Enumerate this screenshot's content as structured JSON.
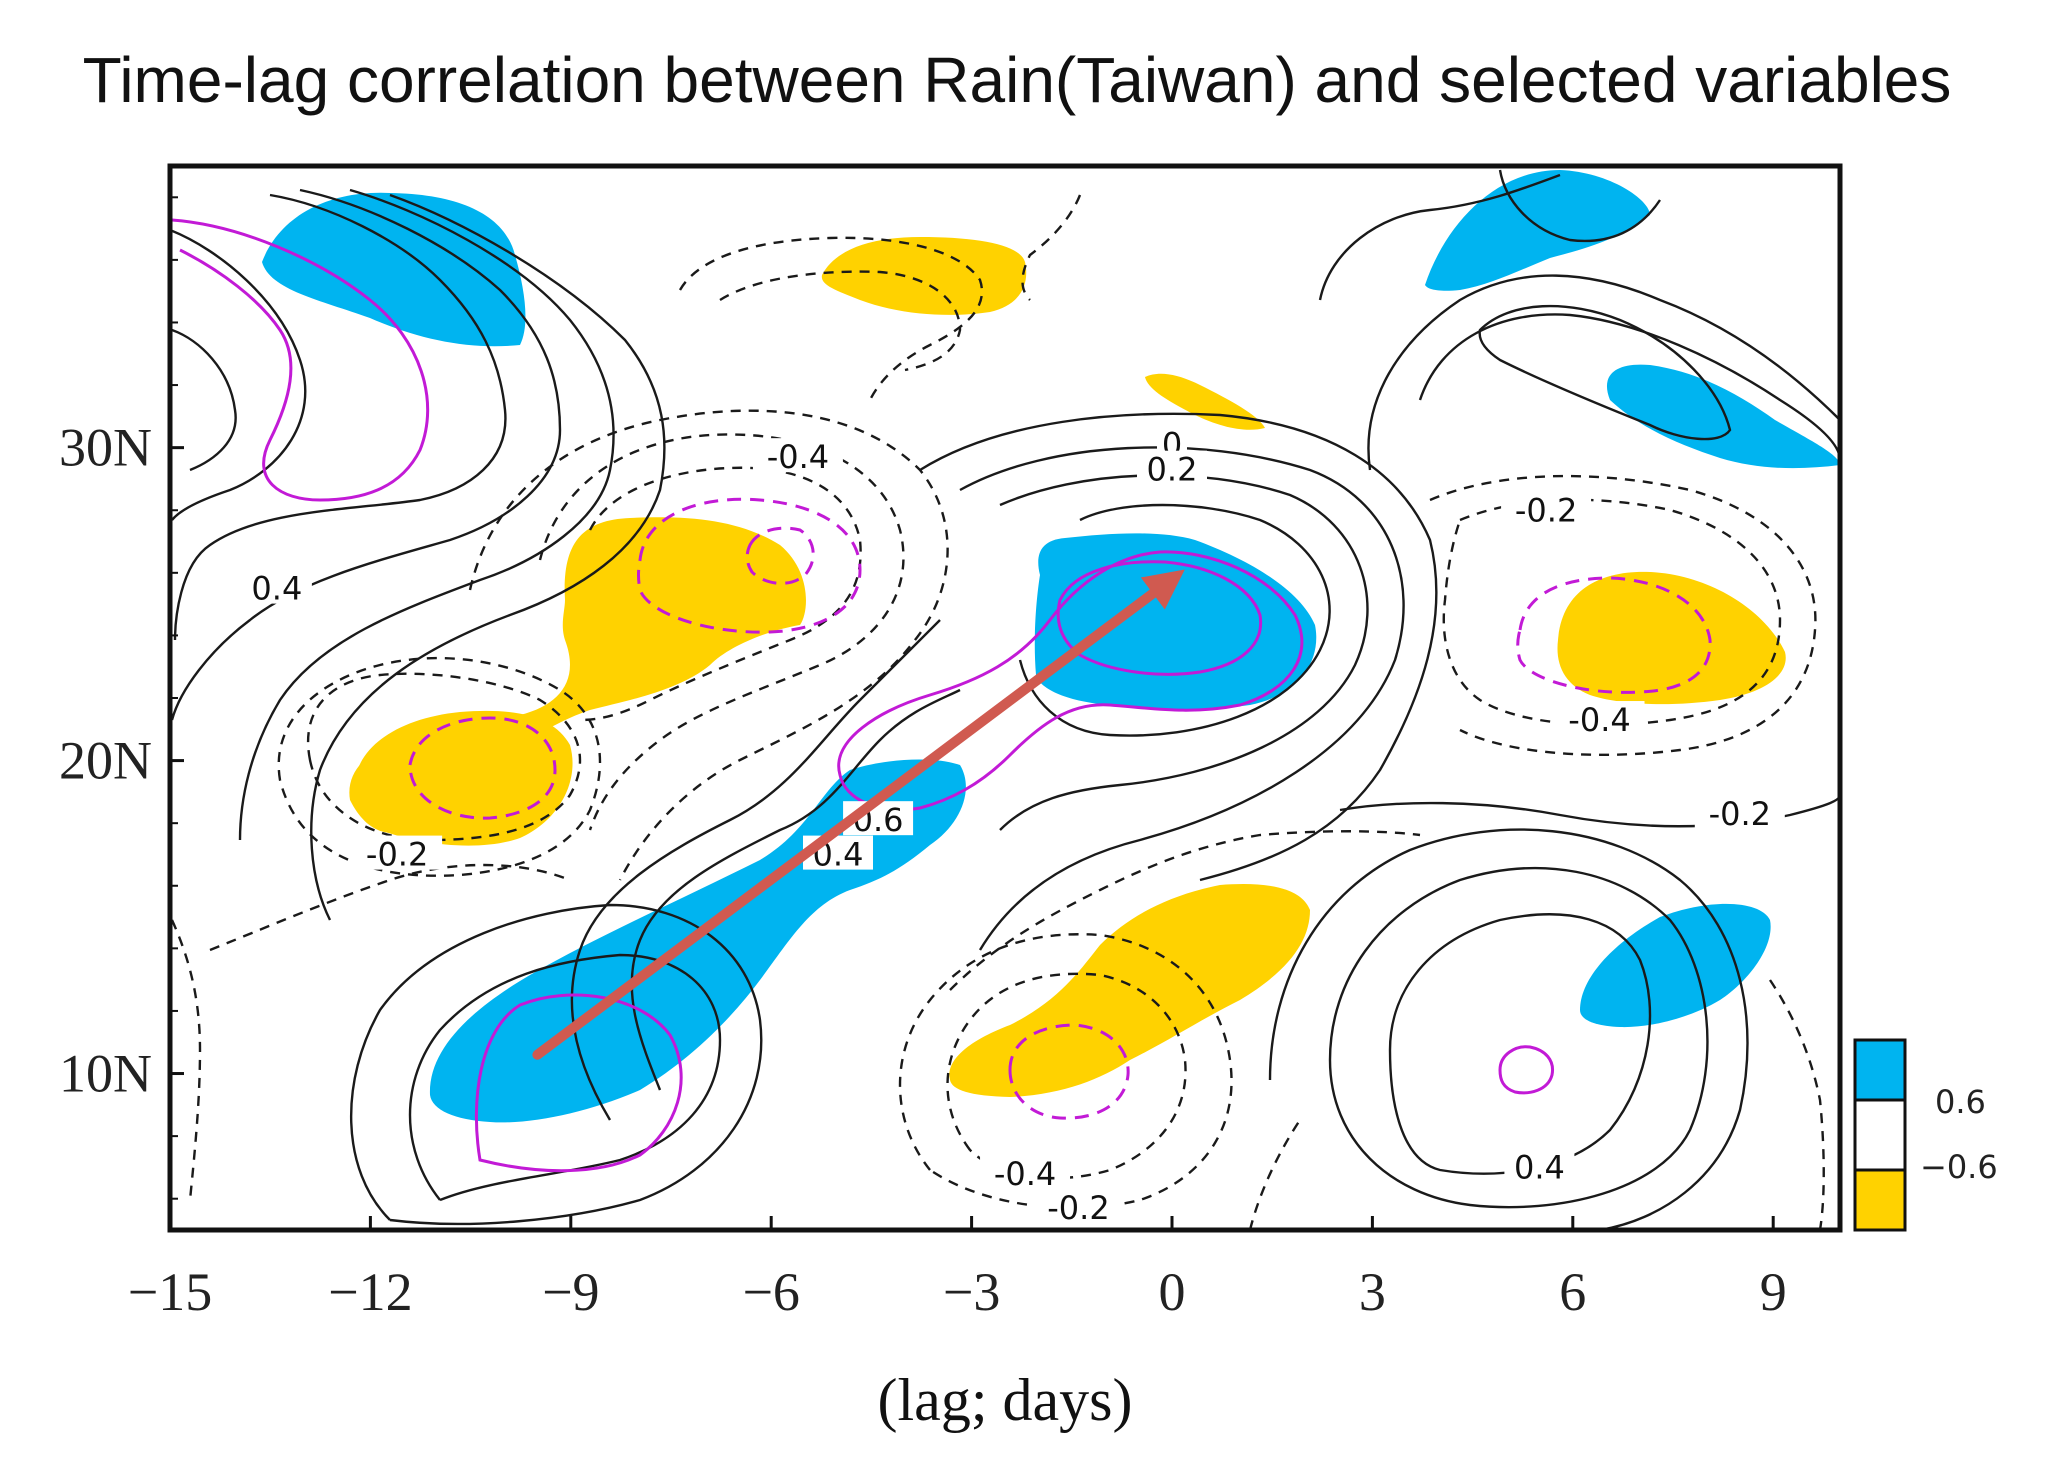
{
  "chart_data": {
    "type": "contour",
    "title": "Time-lag correlation between Rain(Taiwan) and selected variables",
    "xlabel": "(lag; days)",
    "ylabel": "",
    "xlim": [
      -15,
      10
    ],
    "ylim": [
      5,
      39
    ],
    "x_ticks": [
      -15,
      -12,
      -9,
      -6,
      -3,
      0,
      3,
      6,
      9
    ],
    "x_tick_labels": [
      "−15",
      "−12",
      "−9",
      "−6",
      "−3",
      "0",
      "3",
      "6",
      "9"
    ],
    "y_ticks": [
      10,
      20,
      30
    ],
    "y_tick_labels": [
      "10N",
      "20N",
      "30N"
    ],
    "shading": [
      {
        "name": "positive",
        "threshold": 0.6,
        "color": "#00b4f0"
      },
      {
        "name": "negative",
        "threshold": -0.6,
        "color": "#ffd200"
      }
    ],
    "legend": {
      "position": "right-bottom",
      "labels": [
        "0.6",
        "−0.6"
      ]
    },
    "contour_labels": [
      {
        "text": "0.4",
        "lag": -13.4,
        "lat": 25.4
      },
      {
        "text": "-0.4",
        "lag": -5.6,
        "lat": 29.6
      },
      {
        "text": "-0.2",
        "lag": -11.6,
        "lat": 16.9
      },
      {
        "text": "0",
        "lag": 0,
        "lat": 30.0
      },
      {
        "text": "0.2",
        "lag": 0,
        "lat": 29.2
      },
      {
        "text": "0.6",
        "lag": -4.4,
        "lat": 18.0
      },
      {
        "text": "0.4",
        "lag": -5.0,
        "lat": 16.9
      },
      {
        "text": "-0.2",
        "lag": 5.6,
        "lat": 27.9
      },
      {
        "text": "-0.4",
        "lag": 6.4,
        "lat": 21.2
      },
      {
        "text": "-0.2",
        "lag": 8.5,
        "lat": 18.2
      },
      {
        "text": "-0.4",
        "lag": -2.2,
        "lat": 6.7
      },
      {
        "text": "-0.2",
        "lag": -1.4,
        "lat": 5.6
      },
      {
        "text": "0.4",
        "lag": 5.5,
        "lat": 6.9
      }
    ],
    "propagation_arrow": {
      "from": {
        "lag": -9.5,
        "lat": 10.6
      },
      "to": {
        "lag": 0.0,
        "lat": 25.8
      },
      "color": "#d05a50"
    }
  }
}
